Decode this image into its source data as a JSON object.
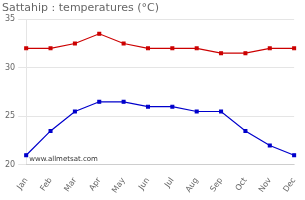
{
  "chart_data": {
    "type": "line",
    "title": "Sattahip : temperatures (°C)",
    "categories": [
      "Jan",
      "Feb",
      "Mar",
      "Apr",
      "May",
      "Jun",
      "Jul",
      "Aug",
      "Sep",
      "Oct",
      "Nov",
      "Dec"
    ],
    "series": [
      {
        "color": "#cc0000",
        "values": [
          32.0,
          32.0,
          32.5,
          33.5,
          32.5,
          32.0,
          32.0,
          32.0,
          31.5,
          31.5,
          32.0,
          32.0
        ]
      },
      {
        "color": "#0000cc",
        "values": [
          21.0,
          23.5,
          25.5,
          26.5,
          26.5,
          26.0,
          26.0,
          25.5,
          25.5,
          23.5,
          22.0,
          21.0
        ]
      }
    ],
    "marker": "square",
    "ylim": [
      20,
      35
    ],
    "yticks": [
      20,
      25,
      30,
      35
    ],
    "grid": "y",
    "annotations": [
      "www.allmetsat.com"
    ]
  }
}
